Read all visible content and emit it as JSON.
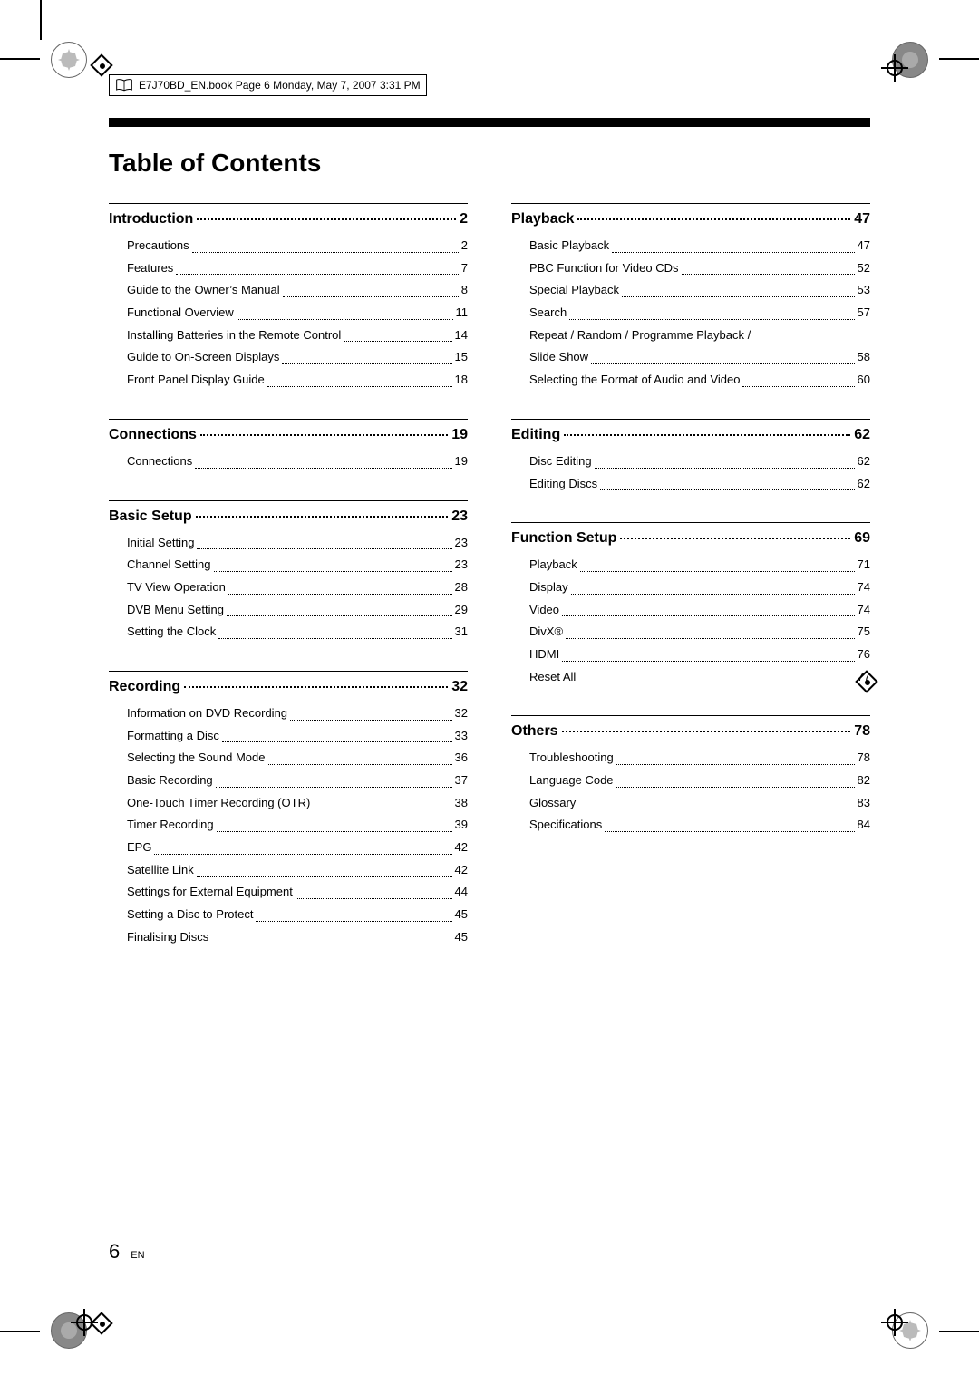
{
  "filepath": "E7J70BD_EN.book  Page 6  Monday, May 7, 2007  3:31 PM",
  "title": "Table of Contents",
  "left_sections": [
    {
      "head": "Introduction",
      "page": "2",
      "items": [
        {
          "label": "Precautions",
          "pg": "2"
        },
        {
          "label": "Features",
          "pg": "7"
        },
        {
          "label": "Guide to the Owner’s Manual",
          "pg": "8"
        },
        {
          "label": "Functional Overview",
          "pg": "11"
        },
        {
          "label": "Installing Batteries in the Remote Control",
          "pg": "14"
        },
        {
          "label": "Guide to On-Screen Displays",
          "pg": "15"
        },
        {
          "label": "Front Panel Display Guide",
          "pg": "18"
        }
      ]
    },
    {
      "head": "Connections",
      "page": "19",
      "items": [
        {
          "label": "Connections",
          "pg": "19"
        }
      ]
    },
    {
      "head": "Basic Setup",
      "page": "23",
      "items": [
        {
          "label": "Initial Setting",
          "pg": "23"
        },
        {
          "label": "Channel Setting",
          "pg": "23"
        },
        {
          "label": "TV View Operation",
          "pg": "28"
        },
        {
          "label": "DVB Menu Setting",
          "pg": "29"
        },
        {
          "label": "Setting the Clock",
          "pg": "31"
        }
      ]
    },
    {
      "head": "Recording",
      "page": "32",
      "items": [
        {
          "label": "Information on DVD Recording",
          "pg": "32"
        },
        {
          "label": "Formatting a Disc",
          "pg": "33"
        },
        {
          "label": "Selecting the Sound Mode",
          "pg": "36"
        },
        {
          "label": "Basic Recording",
          "pg": "37"
        },
        {
          "label": "One-Touch Timer Recording (OTR)",
          "pg": "38"
        },
        {
          "label": "Timer Recording",
          "pg": "39"
        },
        {
          "label": "EPG",
          "pg": "42"
        },
        {
          "label": "Satellite Link",
          "pg": "42"
        },
        {
          "label": "Settings for External Equipment",
          "pg": "44"
        },
        {
          "label": "Setting a Disc to Protect",
          "pg": "45"
        },
        {
          "label": "Finalising Discs",
          "pg": "45"
        }
      ]
    }
  ],
  "right_sections": [
    {
      "head": "Playback",
      "page": "47",
      "items": [
        {
          "label": "Basic Playback",
          "pg": "47"
        },
        {
          "label": "PBC Function for Video CDs",
          "pg": "52"
        },
        {
          "label": "Special Playback",
          "pg": "53"
        },
        {
          "label": "Search",
          "pg": "57"
        },
        {
          "label_multiline": [
            "Repeat / Random / Programme Playback /",
            "Slide Show"
          ],
          "pg": "58"
        },
        {
          "label": "Selecting the Format of Audio and Video",
          "pg": "60"
        }
      ]
    },
    {
      "head": "Editing",
      "page": "62",
      "items": [
        {
          "label": "Disc Editing",
          "pg": "62"
        },
        {
          "label": "Editing Discs",
          "pg": "62"
        }
      ]
    },
    {
      "head": "Function Setup",
      "page": "69",
      "items": [
        {
          "label": "Playback",
          "pg": "71"
        },
        {
          "label": "Display",
          "pg": "74"
        },
        {
          "label": "Video",
          "pg": "74"
        },
        {
          "label": "DivX®",
          "pg": "75"
        },
        {
          "label": "HDMI",
          "pg": "76"
        },
        {
          "label": "Reset All",
          "pg": "77"
        }
      ]
    },
    {
      "head": "Others",
      "page": "78",
      "items": [
        {
          "label": "Troubleshooting",
          "pg": "78"
        },
        {
          "label": "Language Code",
          "pg": "82"
        },
        {
          "label": "Glossary",
          "pg": "83"
        },
        {
          "label": "Specifications",
          "pg": "84"
        }
      ]
    }
  ],
  "footer": {
    "page_number": "6",
    "lang": "EN"
  }
}
